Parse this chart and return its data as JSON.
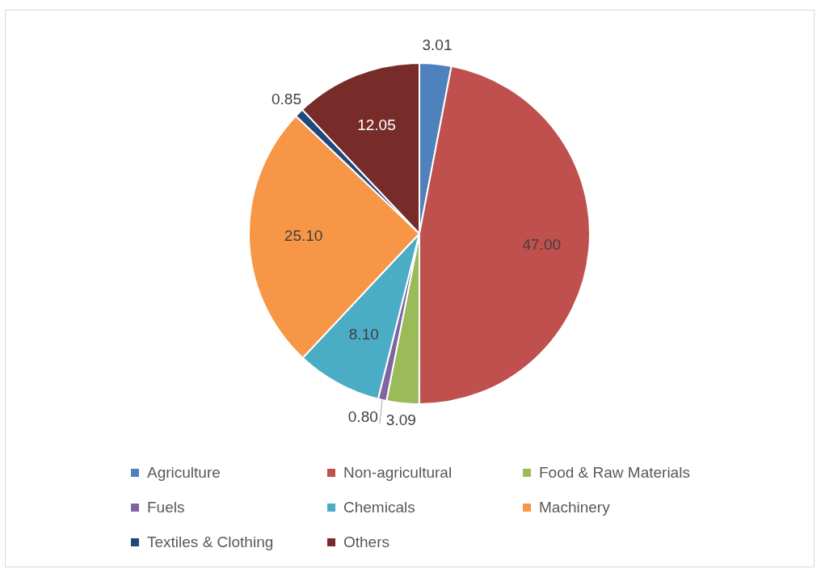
{
  "chart_data": {
    "type": "pie",
    "categories": [
      "Agriculture",
      "Non-agricultural",
      "Food & Raw Materials",
      "Fuels",
      "Chemicals",
      "Machinery",
      "Textiles & Clothing",
      "Others"
    ],
    "values": [
      3.01,
      47.0,
      3.09,
      0.8,
      8.1,
      25.1,
      0.85,
      12.05
    ],
    "value_labels": [
      "3.01",
      "47.00",
      "3.09",
      "0.80",
      "8.10",
      "25.10",
      "0.85",
      "12.05"
    ],
    "colors": [
      "#4f81bd",
      "#c0504d",
      "#9bbb59",
      "#8064a2",
      "#4bacc6",
      "#f79646",
      "#1f497d",
      "#772c2a"
    ],
    "legend": "bottom"
  }
}
